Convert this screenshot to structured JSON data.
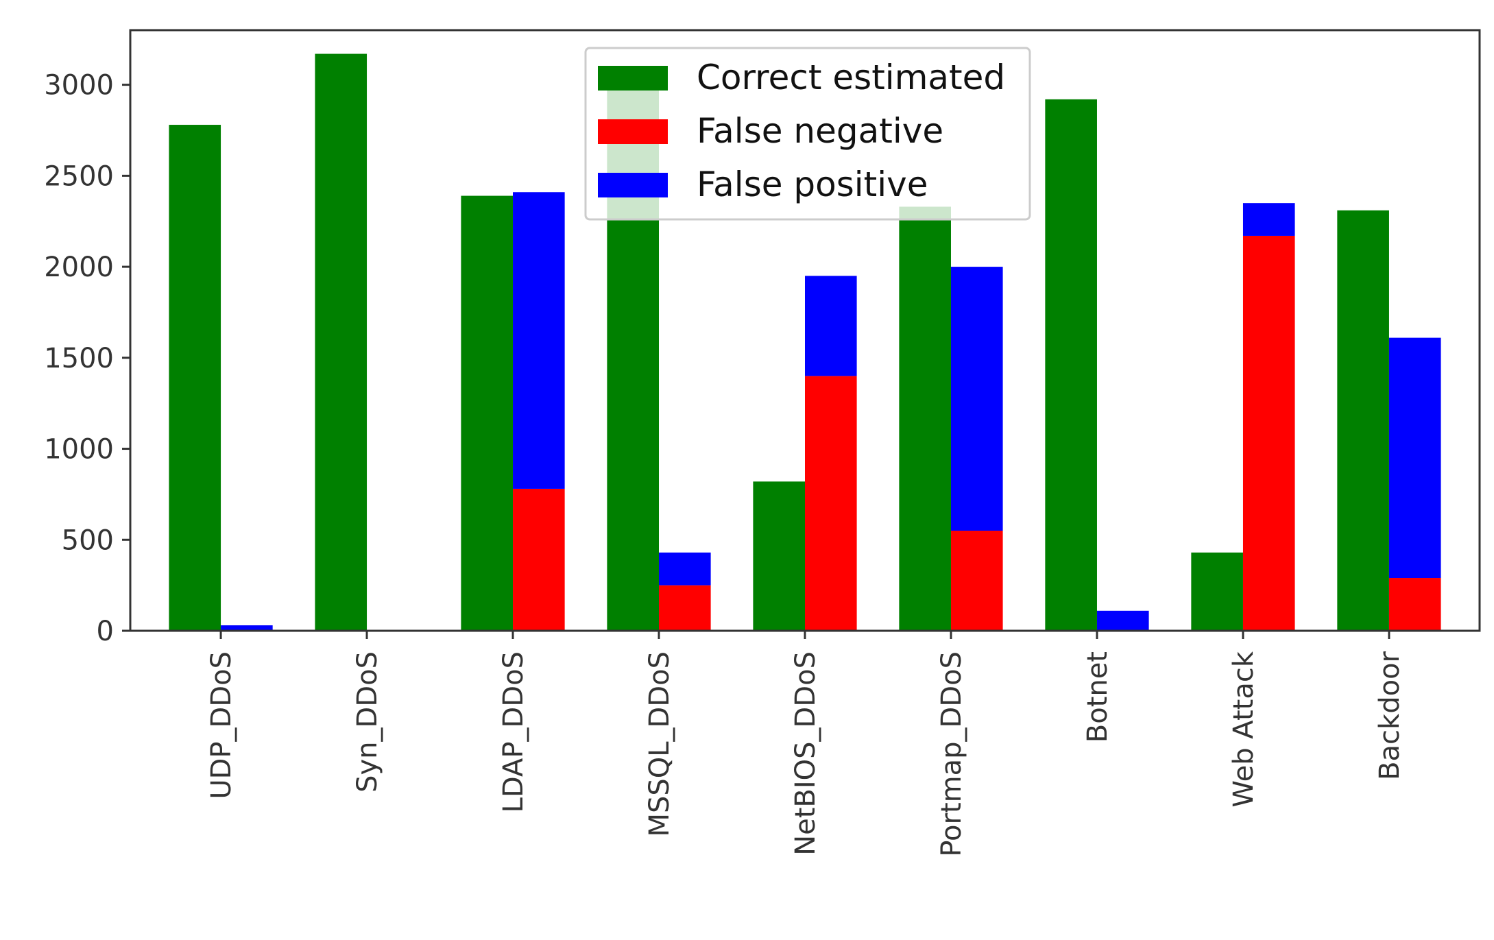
{
  "chart_data": {
    "type": "bar",
    "stacked_second_bar": true,
    "categories": [
      "UDP_DDoS",
      "Syn_DDoS",
      "LDAP_DDoS",
      "MSSQL_DDoS",
      "NetBIOS_DDoS",
      "Portmap_DDoS",
      "Botnet",
      "Web Attack",
      "Backdoor"
    ],
    "series": [
      {
        "name": "Correct estimated",
        "color": "#008000",
        "values": [
          2780,
          3170,
          2390,
          2980,
          820,
          2330,
          2920,
          430,
          2310
        ]
      },
      {
        "name": "False negative",
        "color": "#ff0000",
        "values": [
          0,
          0,
          780,
          250,
          1400,
          550,
          0,
          2170,
          290
        ]
      },
      {
        "name": "False positive",
        "color": "#0000ff",
        "values": [
          30,
          0,
          1630,
          180,
          550,
          1450,
          110,
          180,
          1320
        ]
      }
    ],
    "title": "",
    "xlabel": "",
    "ylabel": "",
    "ylim": [
      0,
      3300
    ],
    "yticks": [
      0,
      500,
      1000,
      1500,
      2000,
      2500,
      3000
    ],
    "grid": false,
    "legend_position": "top-center"
  }
}
